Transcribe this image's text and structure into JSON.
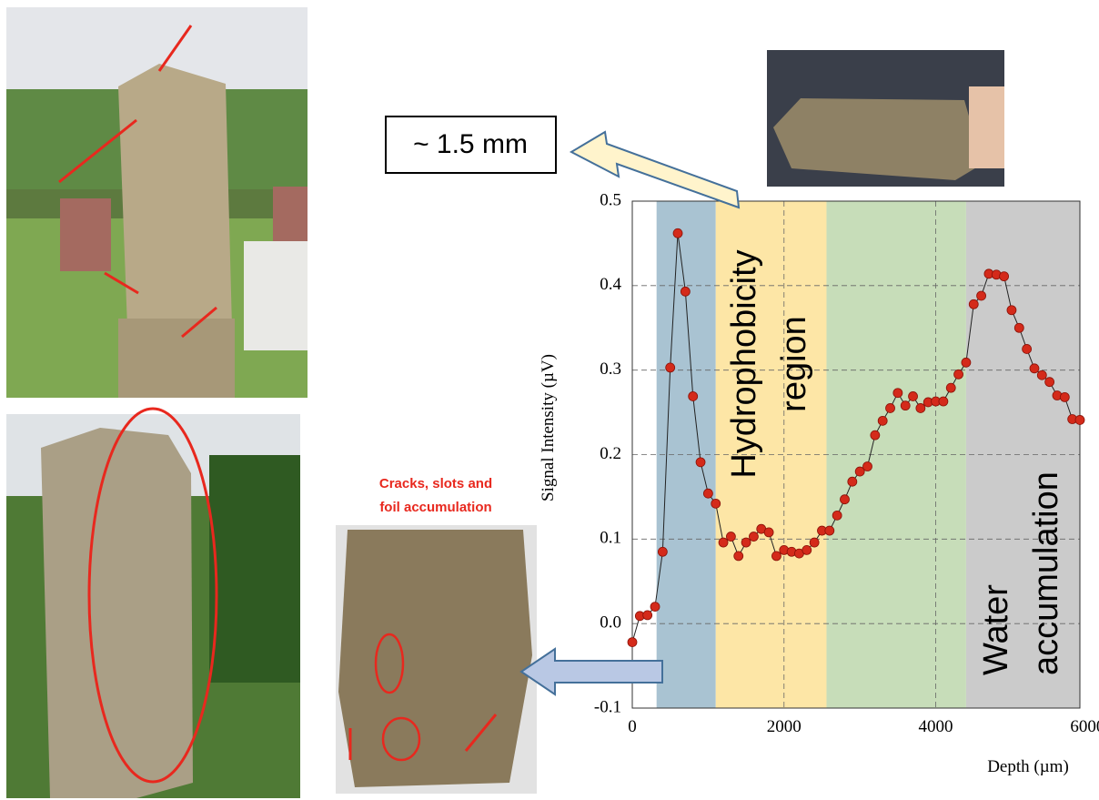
{
  "chart_data": {
    "type": "scatter-line",
    "xlabel": "Depth (µm)",
    "ylabel": "Signal Intensity (µV)",
    "x": [
      0,
      100,
      200,
      300,
      400,
      500,
      600,
      700,
      800,
      900,
      1000,
      1100,
      1200,
      1300,
      1400,
      1500,
      1600,
      1700,
      1800,
      1900,
      2000,
      2100,
      2200,
      2300,
      2400,
      2500,
      2600,
      2700,
      2800,
      2900,
      3000,
      3100,
      3200,
      3300,
      3400,
      3500,
      3600,
      3700,
      3800,
      3900,
      4000,
      4100,
      4200,
      4300,
      4400,
      4500,
      4600,
      4700,
      4800,
      4900,
      5000,
      5100,
      5200,
      5300,
      5400,
      5500,
      5600,
      5700,
      5800,
      5900
    ],
    "series": [
      {
        "color": "#d42a1a",
        "values": [
          -0.022,
          0.009,
          0.01,
          0.02,
          0.085,
          0.303,
          0.462,
          0.393,
          0.269,
          0.191,
          0.154,
          0.142,
          0.096,
          0.103,
          0.08,
          0.096,
          0.103,
          0.112,
          0.108,
          0.08,
          0.087,
          0.085,
          0.083,
          0.087,
          0.096,
          0.11,
          0.11,
          0.128,
          0.147,
          0.168,
          0.18,
          0.186,
          0.223,
          0.24,
          0.255,
          0.273,
          0.258,
          0.269,
          0.255,
          0.262,
          0.263,
          0.263,
          0.279,
          0.295,
          0.309,
          0.378,
          0.388,
          0.414,
          0.413,
          0.411,
          0.371,
          0.35,
          0.325,
          0.302,
          0.294,
          0.286,
          0.27,
          0.268,
          0.242,
          0.241
        ]
      }
    ],
    "xlim": [
      0,
      5900
    ],
    "xticks": [
      0,
      2000,
      4000,
      6000
    ],
    "ylim": [
      -0.1,
      0.5
    ],
    "yticks": [
      0.5,
      0.4,
      0.3,
      0.2,
      0.1,
      {
        "value": 0,
        "label": "0.0"
      },
      -0.1
    ],
    "grid": true,
    "regions": [
      {
        "x0": 320,
        "x1": 1100,
        "color": "#a9c3d2"
      },
      {
        "x0": 1100,
        "x1": 2560,
        "color": "#fde6a6",
        "label_lines": [
          "Hydrophobicity",
          "region"
        ]
      },
      {
        "x0": 2560,
        "x1": 4400,
        "color": "#c7ddb9"
      },
      {
        "x0": 4400,
        "x1": 5900,
        "color": "#cbcbcb",
        "label_lines": [
          "Water",
          "accumulation"
        ]
      }
    ]
  },
  "annotations": {
    "scale_box": "~ 1.5 mm",
    "crack_note": [
      "Cracks, slots and",
      "foil accumulation"
    ]
  }
}
